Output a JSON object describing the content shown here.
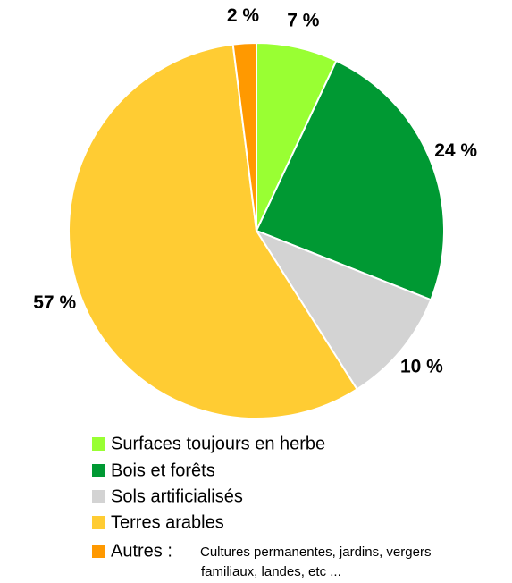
{
  "chart_data": {
    "type": "pie",
    "categories": [
      "Surfaces toujours en herbe",
      "Bois et forêts",
      "Sols artificialisés",
      "Terres arables",
      "Autres :"
    ],
    "values": [
      7,
      24,
      10,
      57,
      2
    ],
    "value_labels": [
      "7 %",
      "24 %",
      "10 %",
      "57 %",
      "2 %"
    ],
    "colors": [
      "#99ff33",
      "#009933",
      "#d3d3d3",
      "#ffcc33",
      "#ff9900"
    ],
    "legend_note": [
      "Cultures permanentes, jardins, vergers",
      "familiaux, landes, etc ..."
    ]
  }
}
